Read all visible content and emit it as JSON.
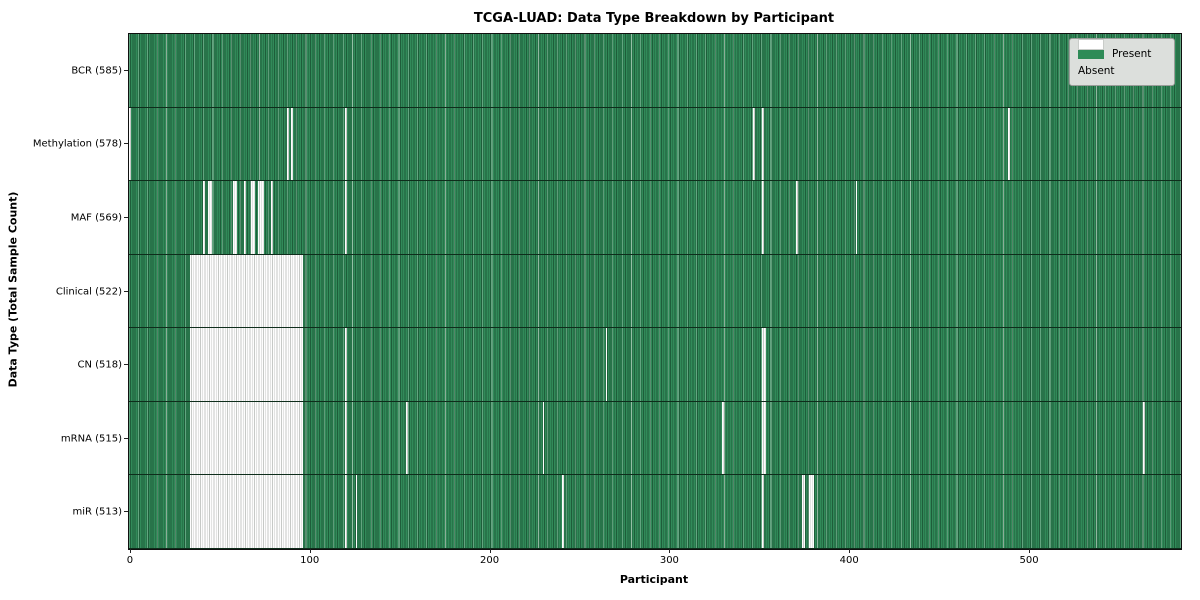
{
  "title": "TCGA-LUAD: Data Type Breakdown by Participant",
  "colors": {
    "present_green": "#2e8b57",
    "absent_white": "#ffffff",
    "row_divider": "#0e2d1b",
    "legend_background": "#dcdfdc",
    "axis_text": "#000000"
  },
  "chart_data": {
    "type": "heatmap",
    "title": "TCGA-LUAD: Data Type Breakdown by Participant",
    "xlabel": "Participant",
    "ylabel": "Data Type (Total Sample Count)",
    "x_ticks": [
      0,
      100,
      200,
      300,
      400,
      500
    ],
    "x_range": [
      0,
      585
    ],
    "total_participants": 585,
    "grid": false,
    "legend": {
      "position": "upper right",
      "entries": [
        {
          "label": "Present",
          "color": "#2e8b57"
        },
        {
          "label": "Absent",
          "color": "#ffffff"
        }
      ]
    },
    "rows": [
      {
        "name": "bcr",
        "label": "BCR (585)",
        "data_type": "BCR",
        "present_count": 585,
        "absent_ranges": []
      },
      {
        "name": "methylation",
        "label": "Methylation (578)",
        "data_type": "Methylation",
        "present_count": 578,
        "absent_ranges": [
          [
            0,
            0
          ],
          [
            88,
            88
          ],
          [
            90,
            90
          ],
          [
            120,
            120
          ],
          [
            347,
            347
          ],
          [
            352,
            352
          ],
          [
            489,
            489
          ]
        ]
      },
      {
        "name": "maf",
        "label": "MAF (569)",
        "data_type": "MAF",
        "present_count": 569,
        "absent_ranges": [
          [
            41,
            41
          ],
          [
            44,
            45
          ],
          [
            58,
            59
          ],
          [
            64,
            64
          ],
          [
            68,
            69
          ],
          [
            72,
            74
          ],
          [
            79,
            79
          ],
          [
            120,
            120
          ],
          [
            352,
            352
          ],
          [
            371,
            371
          ],
          [
            404,
            404
          ]
        ]
      },
      {
        "name": "clinical",
        "label": "Clinical (522)",
        "data_type": "Clinical",
        "present_count": 522,
        "absent_ranges": [
          [
            34,
            96
          ]
        ]
      },
      {
        "name": "cn",
        "label": "CN (518)",
        "data_type": "CN",
        "present_count": 518,
        "absent_ranges": [
          [
            34,
            96
          ],
          [
            120,
            120
          ],
          [
            265,
            265
          ],
          [
            352,
            353
          ]
        ]
      },
      {
        "name": "mrna",
        "label": "mRNA (515)",
        "data_type": "mRNA",
        "present_count": 515,
        "absent_ranges": [
          [
            34,
            96
          ],
          [
            120,
            120
          ],
          [
            154,
            154
          ],
          [
            230,
            230
          ],
          [
            330,
            330
          ],
          [
            352,
            353
          ],
          [
            564,
            564
          ]
        ]
      },
      {
        "name": "mir",
        "label": "miR (513)",
        "data_type": "miR",
        "present_count": 513,
        "absent_ranges": [
          [
            34,
            96
          ],
          [
            120,
            120
          ],
          [
            126,
            126
          ],
          [
            241,
            241
          ],
          [
            352,
            352
          ],
          [
            374,
            375
          ],
          [
            378,
            380
          ]
        ]
      }
    ]
  }
}
